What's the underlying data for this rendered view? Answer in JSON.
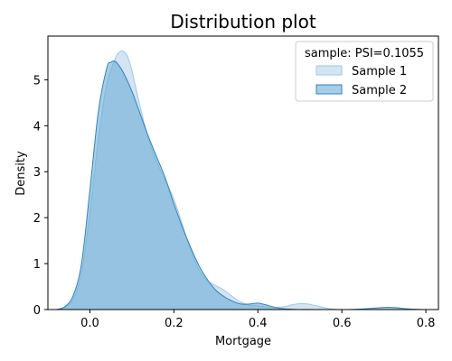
{
  "chart_data": {
    "type": "area",
    "title": "Distribution plot",
    "xlabel": "Mortgage",
    "ylabel": "Density",
    "xlim": [
      -0.1,
      0.83
    ],
    "ylim": [
      0,
      5.95
    ],
    "xticks": [
      0.0,
      0.2,
      0.4,
      0.6,
      0.8
    ],
    "xtick_labels": [
      "0.0",
      "0.2",
      "0.4",
      "0.6",
      "0.8"
    ],
    "yticks": [
      0,
      1,
      2,
      3,
      4,
      5
    ],
    "ytick_labels": [
      "0",
      "1",
      "2",
      "3",
      "4",
      "5"
    ],
    "grid": false,
    "legend": {
      "title": "sample: PSI=0.1055",
      "placement": "top-right"
    },
    "series": [
      {
        "name": "Sample 1",
        "fill": "#c6dbef",
        "fill_opacity": 0.75,
        "stroke": "#9ecae1",
        "x": [
          -0.08,
          -0.06,
          -0.04,
          -0.02,
          0.0,
          0.02,
          0.04,
          0.06,
          0.07,
          0.08,
          0.09,
          0.1,
          0.12,
          0.14,
          0.16,
          0.18,
          0.2,
          0.22,
          0.24,
          0.26,
          0.28,
          0.3,
          0.32,
          0.34,
          0.36,
          0.38,
          0.4,
          0.42,
          0.44,
          0.46,
          0.48,
          0.5,
          0.52,
          0.54,
          0.56,
          0.58,
          0.6,
          0.65,
          0.7,
          0.75,
          0.8
        ],
        "y": [
          0.0,
          0.05,
          0.22,
          0.8,
          2.1,
          3.7,
          4.9,
          5.45,
          5.6,
          5.62,
          5.5,
          5.2,
          4.4,
          3.7,
          3.2,
          2.8,
          2.4,
          1.85,
          1.3,
          0.85,
          0.62,
          0.52,
          0.42,
          0.28,
          0.16,
          0.1,
          0.08,
          0.06,
          0.05,
          0.06,
          0.1,
          0.13,
          0.12,
          0.08,
          0.04,
          0.01,
          0.0,
          0.0,
          0.0,
          0.0,
          0.0
        ]
      },
      {
        "name": "Sample 2",
        "fill": "#6baed6",
        "fill_opacity": 0.6,
        "stroke": "#3182bd",
        "x": [
          -0.08,
          -0.06,
          -0.04,
          -0.02,
          0.0,
          0.02,
          0.04,
          0.05,
          0.06,
          0.07,
          0.08,
          0.1,
          0.12,
          0.14,
          0.16,
          0.18,
          0.2,
          0.22,
          0.24,
          0.26,
          0.28,
          0.3,
          0.32,
          0.34,
          0.36,
          0.38,
          0.4,
          0.42,
          0.44,
          0.46,
          0.5,
          0.55,
          0.6,
          0.63,
          0.66,
          0.69,
          0.71,
          0.73,
          0.75,
          0.78,
          0.8
        ],
        "y": [
          0.0,
          0.06,
          0.3,
          1.0,
          2.6,
          4.3,
          5.25,
          5.38,
          5.4,
          5.3,
          5.15,
          4.75,
          4.25,
          3.75,
          3.3,
          2.85,
          2.3,
          1.8,
          1.35,
          0.95,
          0.65,
          0.42,
          0.28,
          0.18,
          0.12,
          0.12,
          0.14,
          0.1,
          0.05,
          0.02,
          0.0,
          0.0,
          0.0,
          0.005,
          0.02,
          0.04,
          0.05,
          0.04,
          0.02,
          0.005,
          0.0
        ]
      }
    ]
  }
}
